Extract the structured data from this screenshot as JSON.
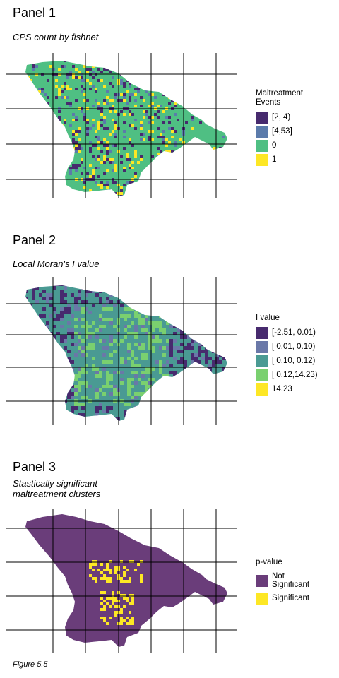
{
  "colors": {
    "dark_purple": "#440154",
    "muted_purple": "#6a3d7a",
    "steel_blue": "#5b7bab",
    "teal": "#4a9a93",
    "green": "#4fbf83",
    "light_green": "#7ad06f",
    "yellow": "#fde725"
  },
  "panels": [
    {
      "title": "Panel 1",
      "subtitle": "CPS count by fishnet",
      "legend": {
        "title": "Maltreatment\nEvents",
        "items": [
          {
            "label": "[2, 4)",
            "color": "#472a6e"
          },
          {
            "label": "[4,53]",
            "color": "#5b7bab"
          },
          {
            "label": "0",
            "color": "#4fbf83"
          },
          {
            "label": "1",
            "color": "#fde725"
          }
        ]
      }
    },
    {
      "title": "Panel 2",
      "subtitle": "Local Moran's I value",
      "legend": {
        "title": "I value",
        "items": [
          {
            "label": "[-2.51, 0.01)",
            "color": "#472a6e"
          },
          {
            "label": "[ 0.01, 0.10)",
            "color": "#6a78a8"
          },
          {
            "label": "[ 0.10, 0.12)",
            "color": "#4a9a93"
          },
          {
            "label": "[ 0.12,14.23)",
            "color": "#7ad06f"
          },
          {
            "label": "14.23",
            "color": "#fde725"
          }
        ]
      }
    },
    {
      "title": "Panel 3",
      "subtitle": "Stastically significant\nmaltreatment clusters",
      "legend": {
        "title": "p-value",
        "items": [
          {
            "label": "Not\nSignificant",
            "color": "#6a3d7a"
          },
          {
            "label": "Significant",
            "color": "#fde725"
          }
        ]
      }
    }
  ],
  "caption": "Figure 5.5"
}
